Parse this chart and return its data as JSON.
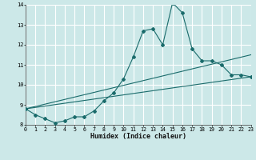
{
  "xlabel": "Humidex (Indice chaleur)",
  "bg_color": "#cce8e8",
  "line_color": "#1a6b6b",
  "grid_color": "#ffffff",
  "xmin": 0,
  "xmax": 23,
  "ymin": 8,
  "ymax": 14,
  "line1_x": [
    0,
    1,
    2,
    3,
    4,
    5,
    6,
    7,
    8,
    9,
    10,
    11,
    12,
    13,
    14,
    15,
    16,
    17,
    18,
    19,
    20,
    21,
    22,
    23
  ],
  "line1_y": [
    8.8,
    8.5,
    8.3,
    8.1,
    8.2,
    8.4,
    8.4,
    8.7,
    9.2,
    9.6,
    10.3,
    11.4,
    12.7,
    12.8,
    12.0,
    14.1,
    13.6,
    11.8,
    11.2,
    11.2,
    11.0,
    10.5,
    10.5,
    10.4
  ],
  "line2_x": [
    0,
    23
  ],
  "line2_y": [
    8.8,
    11.5
  ],
  "line3_x": [
    0,
    23
  ],
  "line3_y": [
    8.8,
    10.4
  ]
}
